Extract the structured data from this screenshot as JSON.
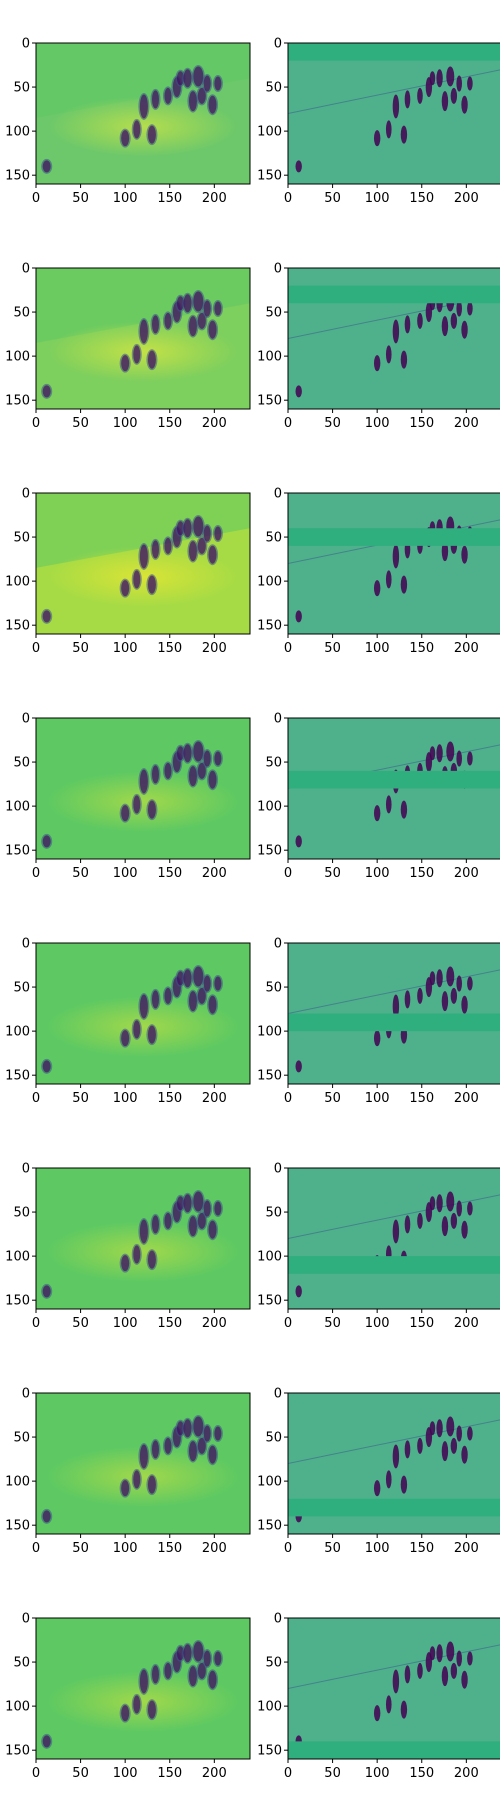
{
  "figure": {
    "layout": {
      "rows": 8,
      "columns": 2
    },
    "x_ticks": [
      "0",
      "50",
      "100",
      "150",
      "200"
    ],
    "y_ticks": [
      "0",
      "50",
      "100",
      "150"
    ],
    "x_tick_values": [
      0,
      50,
      100,
      150,
      200
    ],
    "y_tick_values": [
      0,
      50,
      100,
      150
    ],
    "x_range": [
      0,
      240
    ],
    "y_range": [
      0,
      160
    ],
    "colormap": [
      "#440154",
      "#3b528b",
      "#21918c",
      "#5ec962",
      "#fde725"
    ],
    "panels": [
      {
        "row": 1,
        "left": {
          "background": "#6cc86a",
          "glow": "#bde04a"
        },
        "right": {
          "background": "#2fae7e",
          "band_y": [
            0,
            20
          ]
        }
      },
      {
        "row": 2,
        "left": {
          "background": "#7dcf5e",
          "glow": "#cbe344"
        },
        "right": {
          "background": "#2fae7e",
          "band_y": [
            20,
            40
          ]
        }
      },
      {
        "row": 3,
        "left": {
          "background": "#a6db45",
          "glow": "#dfe534"
        },
        "right": {
          "background": "#2fae7e",
          "band_y": [
            40,
            60
          ]
        }
      },
      {
        "row": 4,
        "left": {
          "background": "#5ec962",
          "glow": "#a8da48"
        },
        "right": {
          "background": "#2fae7e",
          "band_y": [
            60,
            80
          ]
        }
      },
      {
        "row": 5,
        "left": {
          "background": "#5ec962",
          "glow": "#a8da48"
        },
        "right": {
          "background": "#2fae7e",
          "band_y": [
            80,
            100
          ]
        }
      },
      {
        "row": 6,
        "left": {
          "background": "#5ec962",
          "glow": "#a8da48"
        },
        "right": {
          "background": "#2fae7e",
          "band_y": [
            100,
            120
          ]
        }
      },
      {
        "row": 7,
        "left": {
          "background": "#5ec962",
          "glow": "#a8da48"
        },
        "right": {
          "background": "#2fae7e",
          "band_y": [
            120,
            140
          ]
        }
      },
      {
        "row": 8,
        "left": {
          "background": "#5ec962",
          "glow": "#a8da48"
        },
        "right": {
          "background": "#2fae7e",
          "band_y": [
            140,
            160
          ]
        }
      }
    ]
  }
}
